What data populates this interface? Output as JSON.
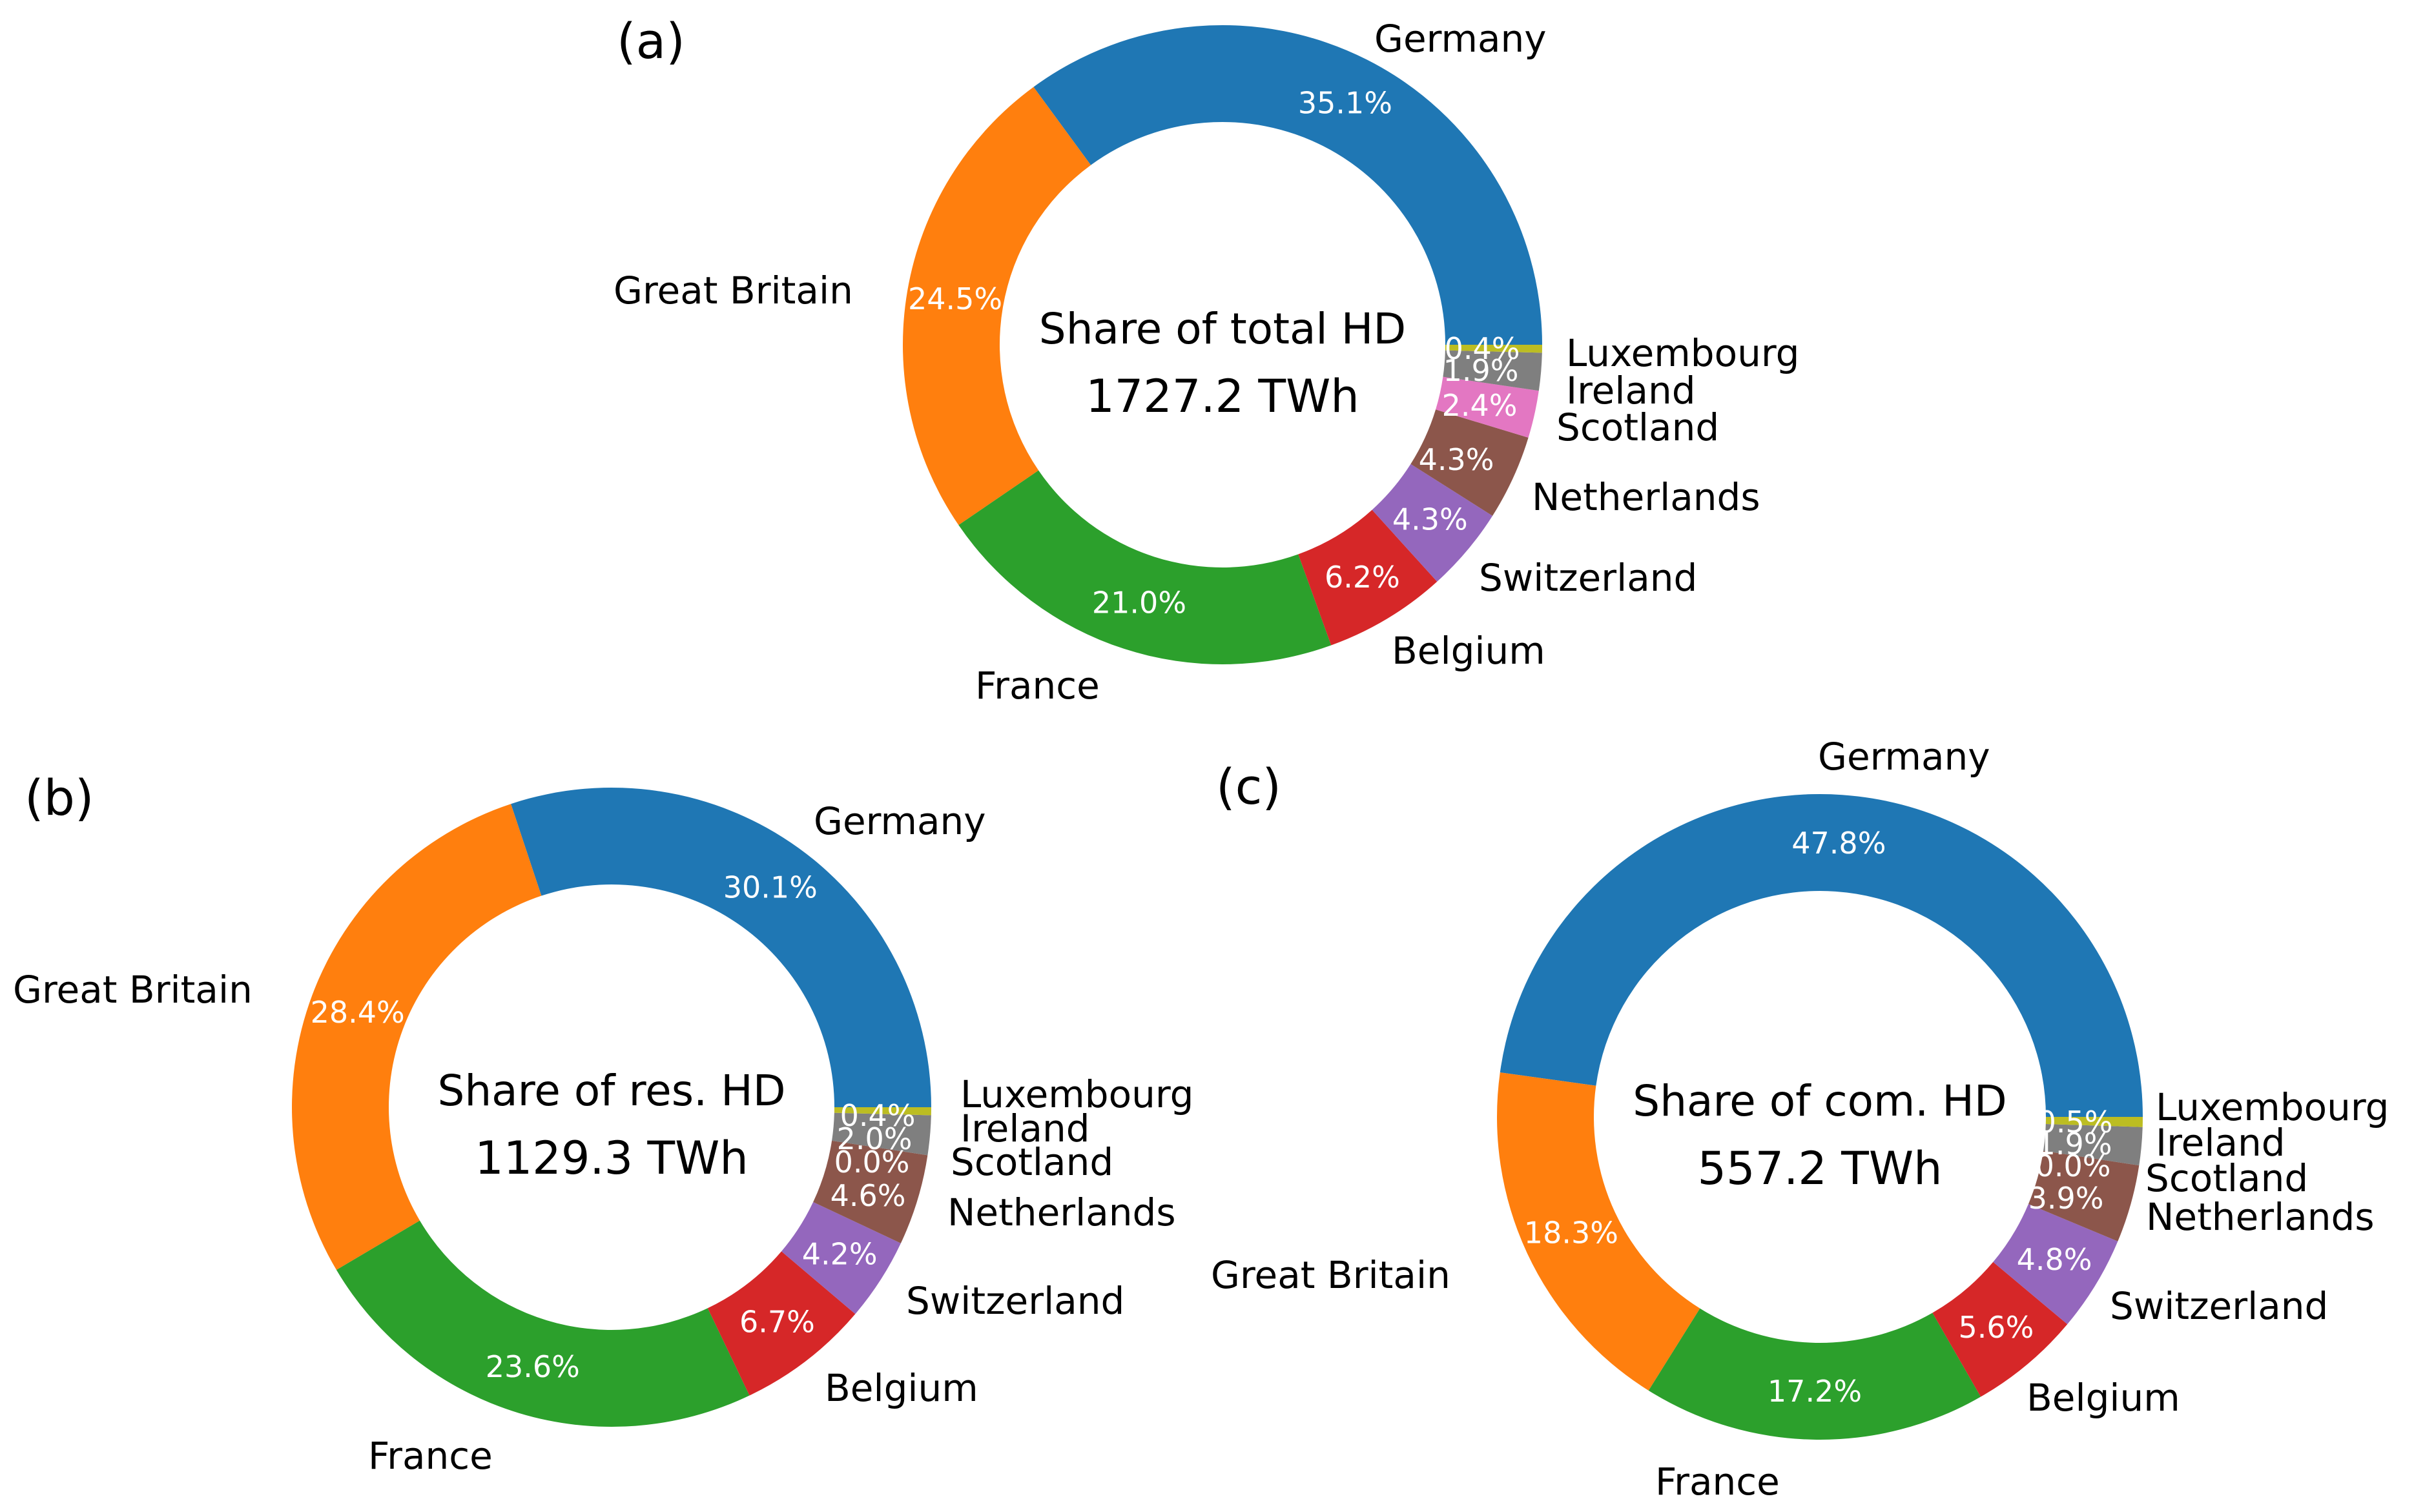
{
  "chart_data": [
    {
      "type": "pie",
      "panel": "(a)",
      "center_title": "Share of total HD",
      "center_value": "1727.2 TWh",
      "categories": [
        "Germany",
        "Great Britain",
        "France",
        "Belgium",
        "Switzerland",
        "Netherlands",
        "Scotland",
        "Ireland",
        "Luxembourg"
      ],
      "values": [
        35.1,
        24.5,
        21.0,
        6.2,
        4.3,
        4.3,
        2.4,
        1.9,
        0.4
      ],
      "value_labels": [
        "35.1%",
        "24.5%",
        "21.0%",
        "6.2%",
        "4.3%",
        "4.3%",
        "2.4%",
        "1.9%",
        "0.4%"
      ]
    },
    {
      "type": "pie",
      "panel": "(b)",
      "center_title": "Share of res. HD",
      "center_value": "1129.3 TWh",
      "categories": [
        "Germany",
        "Great Britain",
        "France",
        "Belgium",
        "Switzerland",
        "Netherlands",
        "Scotland",
        "Ireland",
        "Luxembourg"
      ],
      "values": [
        30.1,
        28.4,
        23.6,
        6.7,
        4.2,
        4.6,
        0.0,
        2.0,
        0.4
      ],
      "value_labels": [
        "30.1%",
        "28.4%",
        "23.6%",
        "6.7%",
        "4.2%",
        "4.6%",
        "0.0%",
        "2.0%",
        "0.4%"
      ]
    },
    {
      "type": "pie",
      "panel": "(c)",
      "center_title": "Share of com. HD",
      "center_value": "557.2 TWh",
      "categories": [
        "Germany",
        "Great Britain",
        "France",
        "Belgium",
        "Switzerland",
        "Netherlands",
        "Scotland",
        "Ireland",
        "Luxembourg"
      ],
      "values": [
        47.8,
        18.3,
        17.2,
        5.6,
        4.8,
        3.9,
        0.0,
        1.9,
        0.5
      ],
      "value_labels": [
        "47.8%",
        "18.3%",
        "17.2%",
        "5.6%",
        "4.8%",
        "3.9%",
        "0.0%",
        "1.9%",
        "0.5%"
      ]
    }
  ],
  "colors": {
    "Germany": "#1f77b4",
    "Great Britain": "#ff7f0e",
    "France": "#2ca02c",
    "Belgium": "#d62728",
    "Switzerland": "#9467bd",
    "Netherlands": "#8c564b",
    "Scotland": "#e377c2",
    "Ireland": "#7f7f7f",
    "Luxembourg": "#bcbd22"
  }
}
